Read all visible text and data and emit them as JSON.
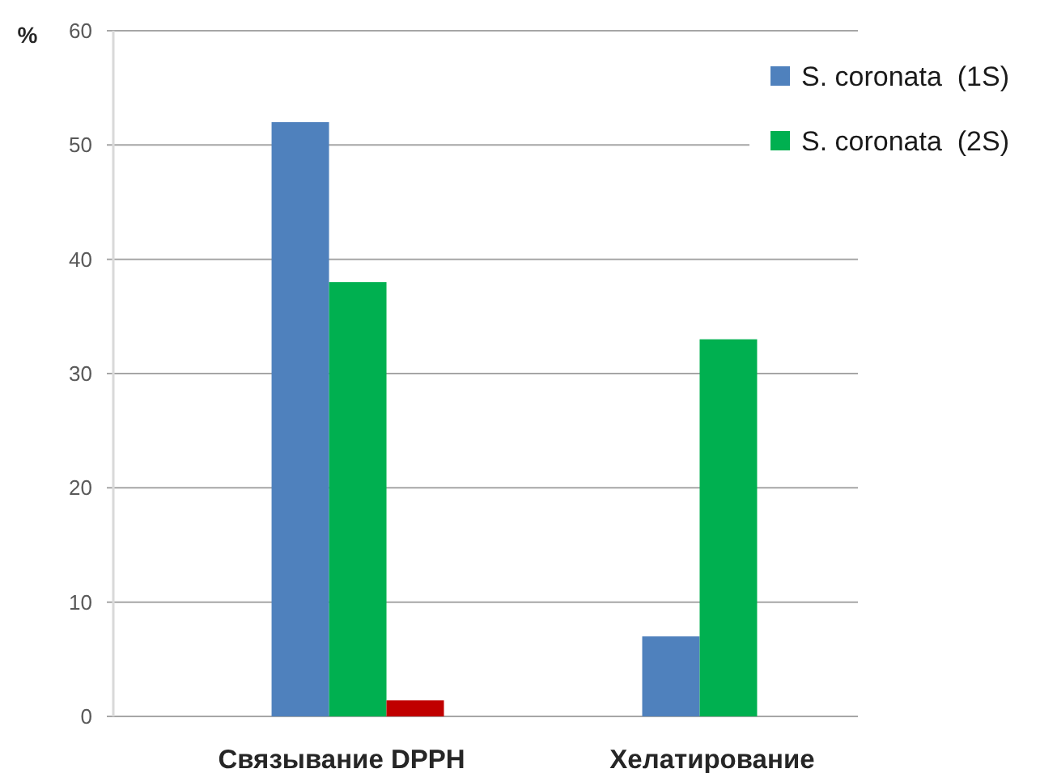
{
  "chart_data": {
    "type": "bar",
    "ylabel": "%",
    "categories": [
      "Связывание DPPH",
      "Хелатирование"
    ],
    "series": [
      {
        "name": "S. coronata  (1S)",
        "color": "#4f81bd",
        "values": [
          52,
          7
        ]
      },
      {
        "name": "S. coronata  (2S)",
        "color": "#00b050",
        "values": [
          38,
          33
        ]
      },
      {
        "color": "#c00000",
        "values": [
          1.4,
          null
        ]
      }
    ],
    "ylim": [
      0,
      60
    ],
    "yticks": [
      0,
      10,
      20,
      30,
      40,
      50,
      60
    ],
    "grid": "y",
    "legend": "top right"
  }
}
